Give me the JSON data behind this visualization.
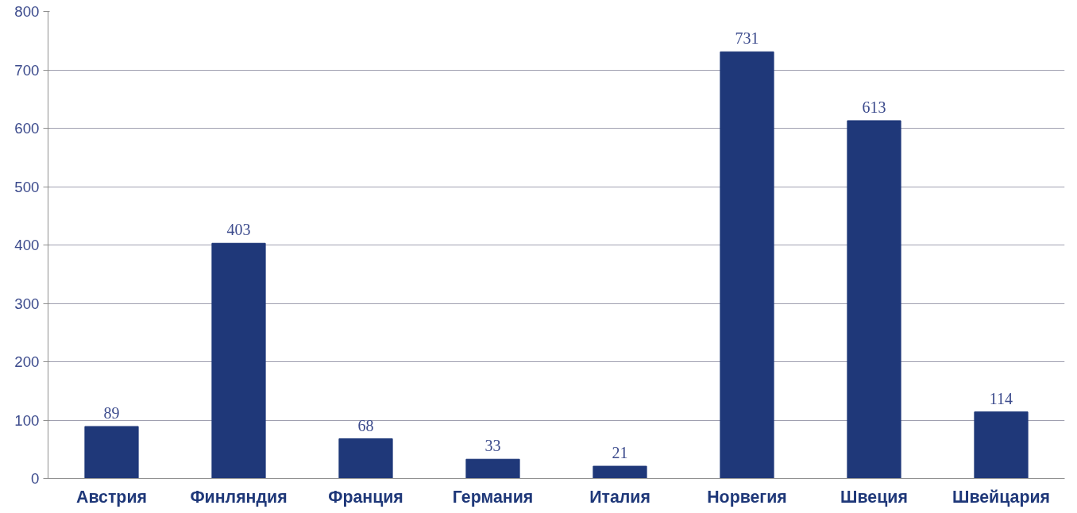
{
  "chart_data": {
    "type": "bar",
    "categories": [
      "Австрия",
      "Финляндия",
      "Франция",
      "Германия",
      "Италия",
      "Норвегия",
      "Швеция",
      "Швейцария"
    ],
    "values": [
      89,
      403,
      68,
      33,
      21,
      731,
      613,
      114
    ],
    "color": "#1f3879",
    "ylim": [
      0,
      800
    ],
    "yticks": [
      0,
      100,
      200,
      300,
      400,
      500,
      600,
      700,
      800
    ],
    "grid": "y",
    "data_labels": true
  }
}
